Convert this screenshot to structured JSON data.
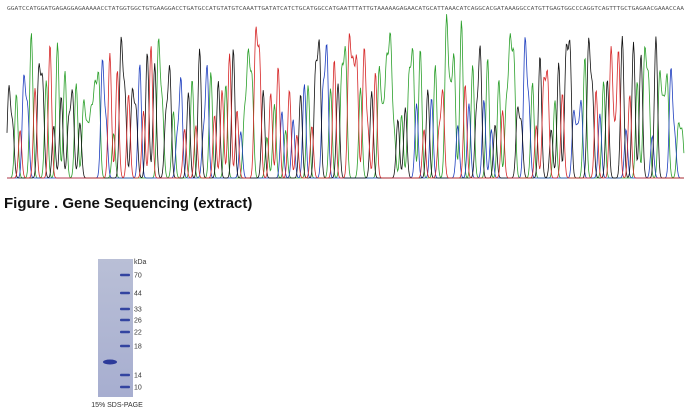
{
  "sequencing": {
    "sequence": "GGATCCATGGATGAGAGGAGAAAAACCTATGGTGGCTGTGAAGGACCTGATGCCATGTATGTCAAATTGATATCATCTGCATGGCCATGAATTTATTGTAAAAAGAGAACATGCATTAAACATCAGGCACGATAAAGGCCATGTTGAGTGGCCCAGGTCAGTTTGCTGAGAACGAAACCAA",
    "caption": "Figure . Gene Sequencing (extract)"
  },
  "gel": {
    "unit": "kDa",
    "markers": [
      "70",
      "44",
      "33",
      "26",
      "22",
      "18",
      "14",
      "10"
    ],
    "caption": "15% SDS-PAGE"
  }
}
